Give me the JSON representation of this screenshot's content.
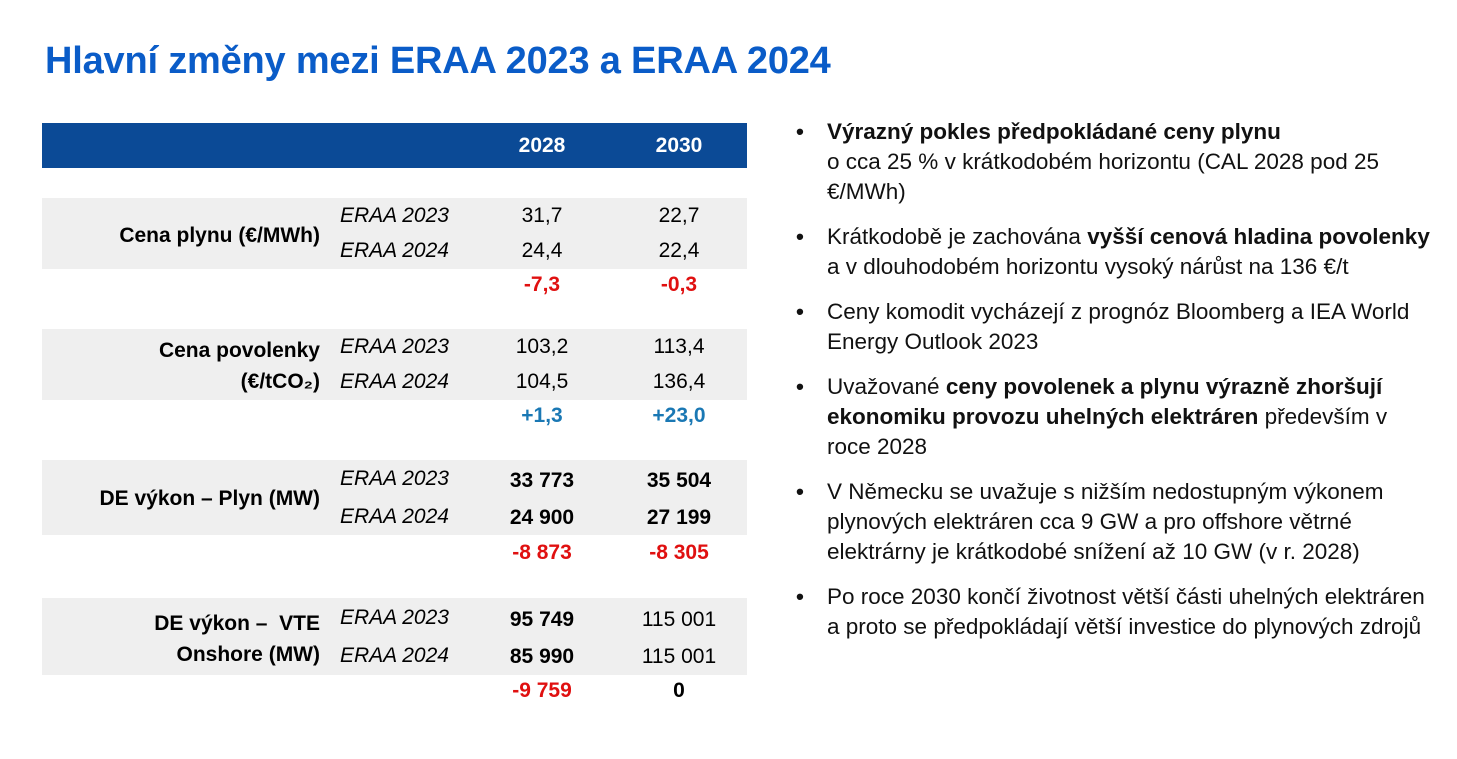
{
  "title": "Hlavní změny mezi ERAA 2023 a ERAA 2024",
  "colors": {
    "title": "#0a5cc8",
    "header_bg": "#0b4a96",
    "band_bg": "#efefef",
    "negative": "#e01010",
    "positive": "#1a78b4"
  },
  "table": {
    "headers": [
      "2028",
      "2030"
    ],
    "rows": [
      {
        "label_lines": [
          "Cena plynu (€/MWh)"
        ],
        "src1": "ERAA 2023",
        "v1": [
          "31,7",
          "22,7"
        ],
        "src2": "ERAA 2024",
        "v2": [
          "24,4",
          "22,4"
        ],
        "diff": [
          "-7,3",
          "-0,3"
        ]
      },
      {
        "label_lines": [
          "Cena povolenky",
          "(€/tCO₂)"
        ],
        "src1": "ERAA 2023",
        "v1": [
          "103,2",
          "113,4"
        ],
        "src2": "ERAA 2024",
        "v2": [
          "104,5",
          "136,4"
        ],
        "diff": [
          "+1,3",
          "+23,0"
        ]
      },
      {
        "label_lines": [
          "DE výkon – Plyn (MW)"
        ],
        "src1": "ERAA 2023",
        "v1": [
          "33 773",
          "35 504"
        ],
        "src2": "ERAA 2024",
        "v2": [
          "24 900",
          "27 199"
        ],
        "diff": [
          "-8 873",
          "-8 305"
        ]
      },
      {
        "label_lines": [
          "DE výkon –  VTE",
          "Onshore (MW)"
        ],
        "src1": "ERAA 2023",
        "v1": [
          "95 749",
          "115 001"
        ],
        "src2": "ERAA 2024",
        "v2": [
          "85 990",
          "115 001"
        ],
        "diff": [
          "-9 759",
          "0"
        ]
      }
    ]
  },
  "bullets": [
    {
      "b1": "Výrazný pokles předpokládané ceny plynu",
      "t1": " o cca 25 % v krátkodobém horizontu (CAL 2028 pod 25 €/MWh)"
    },
    {
      "t0": "Krátkodobě je zachována ",
      "b1": "vyšší cenová hladina povolenky",
      "t1": " a v dlouhodobém horizontu vysoký nárůst na 136 €/t"
    },
    {
      "t0": "Ceny komodit vycházejí z prognóz Bloomberg a IEA World Energy Outlook 2023"
    },
    {
      "t0": "Uvažované ",
      "b1": "ceny povolenek a plynu výrazně zhoršují ekonomiku provozu uhelných elektráren",
      "t1": " především v roce 2028"
    },
    {
      "t0": "V Německu se uvažuje s nižším nedostupným výkonem plynových elektráren cca 9 GW a pro offshore větrné elektrárny je krátkodobé snížení až 10 GW (v r. 2028)"
    },
    {
      "t0": "Po roce 2030 končí životnost větší části uhelných elektráren a proto se předpokládají větší investice do plynových zdrojů"
    }
  ]
}
